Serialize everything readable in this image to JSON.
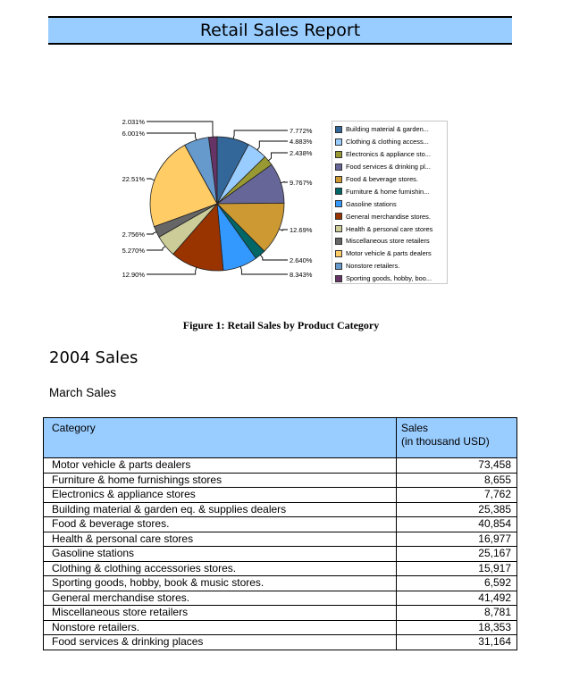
{
  "report": {
    "title": "Retail Sales Report",
    "figure_caption": "Figure 1: Retail Sales by Product Category",
    "section_heading": "2004 Sales",
    "subsection_heading": "March Sales"
  },
  "chart_data": {
    "type": "pie",
    "title": "Retail Sales by Product Category",
    "legend_position": "right",
    "categories": [
      "Building material & garden...",
      "Clothing & clothing access...",
      "Electronics & appliance sto...",
      "Food services & drinking pl...",
      "Food & beverage stores.",
      "Furniture & home furnishin...",
      "Gasoline stations",
      "General merchandise stores.",
      "Health & personal care stores",
      "Miscellaneous store retailers",
      "Motor vehicle & parts dealers",
      "Nonstore retailers.",
      "Sporting goods, hobby, boo..."
    ],
    "values": [
      7.772,
      4.883,
      2.438,
      9.767,
      12.69,
      2.64,
      8.343,
      12.9,
      5.27,
      2.756,
      22.51,
      6.001,
      2.031
    ],
    "labels": [
      "7.772%",
      "4.883%",
      "2.438%",
      "9.767%",
      "12.69%",
      "2.640%",
      "8.343%",
      "12.90%",
      "5.270%",
      "2.756%",
      "22.51%",
      "6.001%",
      "2.031%"
    ],
    "colors": [
      "#336699",
      "#99ccff",
      "#999933",
      "#666699",
      "#cc9933",
      "#006666",
      "#3399ff",
      "#993300",
      "#cccc99",
      "#666666",
      "#ffcc66",
      "#6699cc",
      "#663366"
    ],
    "unit": "%"
  },
  "table": {
    "headers": {
      "category": "Category",
      "sales_line1": "Sales",
      "sales_line2": "(in thousand USD)"
    },
    "rows": [
      {
        "category": "Motor vehicle & parts dealers",
        "sales": "73,458"
      },
      {
        "category": "Furniture & home furnishings stores",
        "sales": "8,655"
      },
      {
        "category": "Electronics & appliance stores",
        "sales": "7,762"
      },
      {
        "category": "Building material & garden eq. & supplies dealers",
        "sales": "25,385"
      },
      {
        "category": "Food & beverage stores.",
        "sales": "40,854"
      },
      {
        "category": "Health & personal care stores",
        "sales": "16,977"
      },
      {
        "category": "Gasoline stations",
        "sales": "25,167"
      },
      {
        "category": "Clothing & clothing accessories stores.",
        "sales": "15,917"
      },
      {
        "category": "Sporting goods, hobby, book & music stores.",
        "sales": "6,592"
      },
      {
        "category": "General merchandise stores.",
        "sales": "41,492"
      },
      {
        "category": "Miscellaneous store retailers",
        "sales": "8,781"
      },
      {
        "category": "Nonstore retailers.",
        "sales": "18,353"
      },
      {
        "category": "Food services & drinking places",
        "sales": "31,164"
      }
    ]
  }
}
